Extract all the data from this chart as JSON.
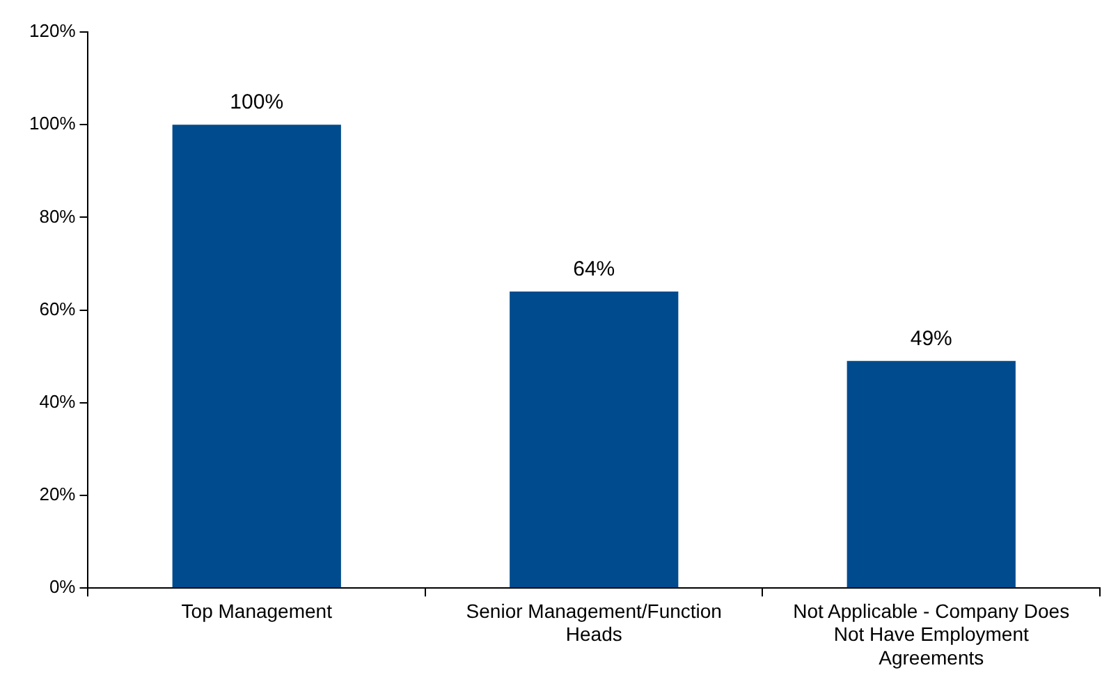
{
  "chart_data": {
    "type": "bar",
    "categories": [
      "Top Management",
      "Senior Management/Function Heads",
      "Not Applicable - Company Does Not Have Employment Agreements"
    ],
    "values": [
      100,
      64,
      49
    ],
    "value_labels": [
      "100%",
      "64%",
      "49%"
    ],
    "color": "#004b8d",
    "ylim": [
      0,
      120
    ],
    "yticks": [
      {
        "value": 0,
        "label": "0%"
      },
      {
        "value": 20,
        "label": "20%"
      },
      {
        "value": 40,
        "label": "40%"
      },
      {
        "value": 60,
        "label": "60%"
      },
      {
        "value": 80,
        "label": "80%"
      },
      {
        "value": 100,
        "label": "100%"
      },
      {
        "value": 120,
        "label": "120%"
      }
    ],
    "grid": false,
    "legend": false
  }
}
